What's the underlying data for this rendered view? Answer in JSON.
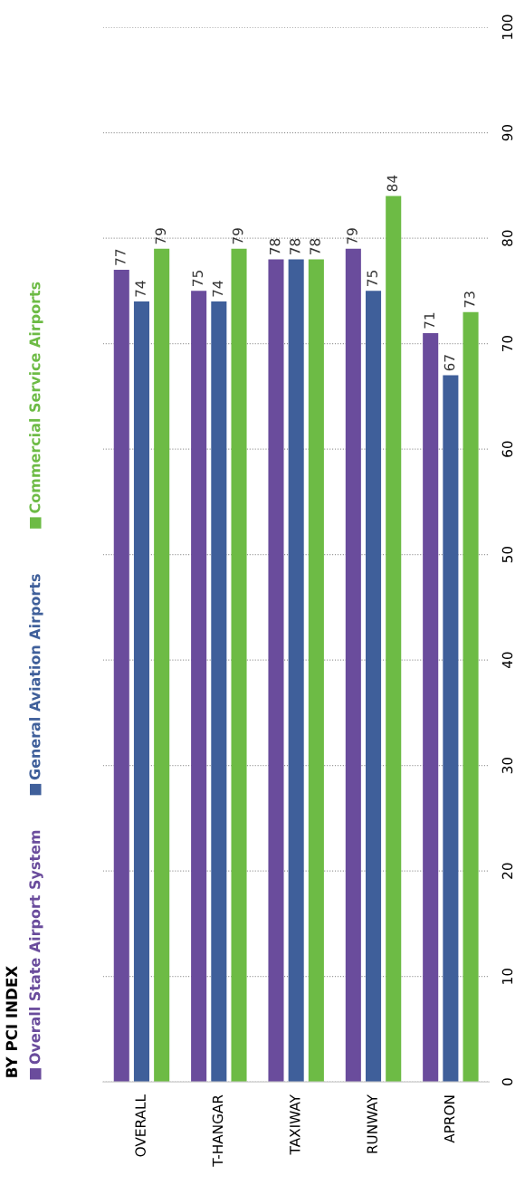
{
  "chart_data": {
    "type": "bar",
    "title": "BY PCI INDEX",
    "categories": [
      "OVERALL",
      "T-HANGAR",
      "TAXIWAY",
      "RUNWAY",
      "APRON"
    ],
    "series": [
      {
        "name": "Overall State Airport System",
        "color": "#6a4c9c",
        "values": [
          77,
          75,
          78,
          79,
          71
        ]
      },
      {
        "name": "General Aviation Airports",
        "color": "#3f5f9a",
        "values": [
          74,
          74,
          78,
          75,
          67
        ]
      },
      {
        "name": "Commercial Service Airports",
        "color": "#6dbb45",
        "values": [
          79,
          79,
          78,
          84,
          73
        ]
      }
    ],
    "ylim": [
      0,
      100
    ],
    "yticks": [
      0,
      10,
      20,
      30,
      40,
      50,
      60,
      70,
      80,
      90,
      100
    ],
    "grid": "y",
    "legend": "left",
    "data_labels": true
  }
}
